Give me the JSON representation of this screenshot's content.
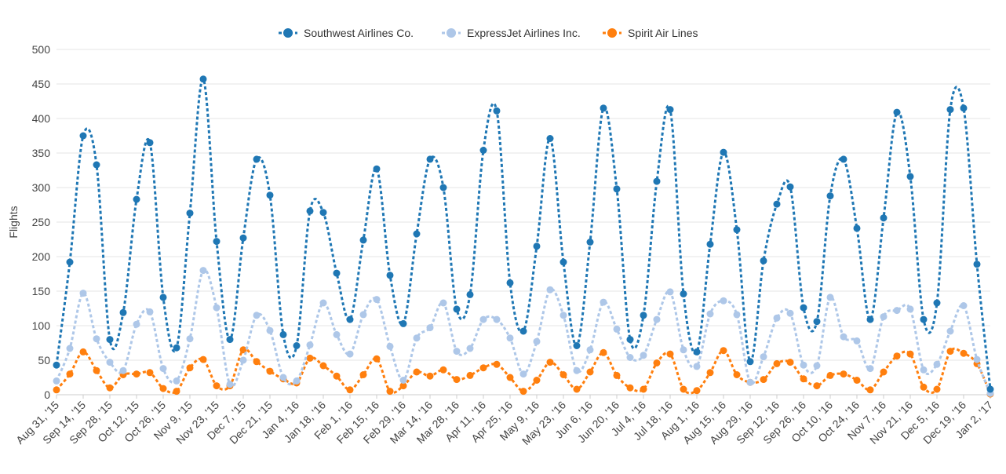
{
  "chart_data": {
    "type": "line",
    "ylabel": "Flights",
    "ylim": [
      0,
      500
    ],
    "yticks": [
      0,
      50,
      100,
      150,
      200,
      250,
      300,
      350,
      400,
      450,
      500
    ],
    "grid": true,
    "legend_position": "top-center",
    "x_tick_labels": [
      "Aug 31, '15",
      "Sep 14, '15",
      "Sep 28, '15",
      "Oct 12, '15",
      "Oct 26, '15",
      "Nov 9, '15",
      "Nov 23, '15",
      "Dec 7, '15",
      "Dec 21, '15",
      "Jan 4, '16",
      "Jan 18, '16",
      "Feb 1, '16",
      "Feb 15, '16",
      "Feb 29, '16",
      "Mar 14, '16",
      "Mar 28, '16",
      "Apr 11, '16",
      "Apr 25, '16",
      "May 9, '16",
      "May 23, '16",
      "Jun 6, '16",
      "Jun 20, '16",
      "Jul 4, '16",
      "Jul 18, '16",
      "Aug 1, '16",
      "Aug 15, '16",
      "Aug 29, '16",
      "Sep 12, '16",
      "Sep 26, '16",
      "Oct 10, '16",
      "Oct 24, '16",
      "Nov 7, '16",
      "Nov 21, '16",
      "Dec 5, '16",
      "Dec 19, '16",
      "Jan 2, '17"
    ],
    "x_tick_every_points": 2,
    "series": [
      {
        "name": "Southwest Airlines Co.",
        "color": "#1f77b4",
        "values": [
          43,
          192,
          375,
          333,
          80,
          119,
          283,
          365,
          141,
          68,
          263,
          457,
          222,
          80,
          227,
          341,
          289,
          87,
          71,
          266,
          264,
          176,
          109,
          224,
          327,
          173,
          103,
          233,
          341,
          300,
          124,
          145,
          354,
          411,
          162,
          92,
          215,
          371,
          192,
          71,
          221,
          415,
          298,
          80,
          115,
          309,
          413,
          146,
          62,
          218,
          351,
          239,
          48,
          194,
          276,
          301,
          126,
          106,
          288,
          341,
          241,
          109,
          256,
          409,
          316,
          109,
          133,
          413,
          415,
          189,
          8
        ]
      },
      {
        "name": "ExpressJet Airlines Inc.",
        "color": "#aec7e8",
        "values": [
          20,
          67,
          147,
          81,
          47,
          35,
          102,
          120,
          38,
          20,
          81,
          180,
          126,
          15,
          50,
          115,
          93,
          25,
          20,
          72,
          133,
          87,
          59,
          116,
          138,
          70,
          21,
          82,
          97,
          133,
          63,
          67,
          109,
          109,
          82,
          30,
          77,
          152,
          115,
          35,
          65,
          134,
          95,
          54,
          57,
          109,
          149,
          65,
          41,
          117,
          136,
          116,
          18,
          55,
          111,
          118,
          43,
          42,
          141,
          84,
          78,
          38,
          113,
          122,
          124,
          36,
          44,
          92,
          129,
          51,
          2
        ]
      },
      {
        "name": "Spirit Air Lines",
        "color": "#ff7f0e",
        "values": [
          7,
          30,
          62,
          35,
          10,
          29,
          30,
          32,
          9,
          5,
          39,
          51,
          13,
          13,
          65,
          48,
          34,
          23,
          17,
          53,
          42,
          27,
          7,
          29,
          52,
          5,
          13,
          33,
          27,
          36,
          22,
          28,
          39,
          44,
          25,
          5,
          21,
          47,
          29,
          8,
          33,
          61,
          28,
          10,
          8,
          46,
          59,
          8,
          6,
          32,
          64,
          29,
          18,
          22,
          45,
          47,
          23,
          13,
          28,
          30,
          21,
          7,
          33,
          56,
          59,
          11,
          8,
          63,
          60,
          45,
          1
        ]
      }
    ]
  }
}
